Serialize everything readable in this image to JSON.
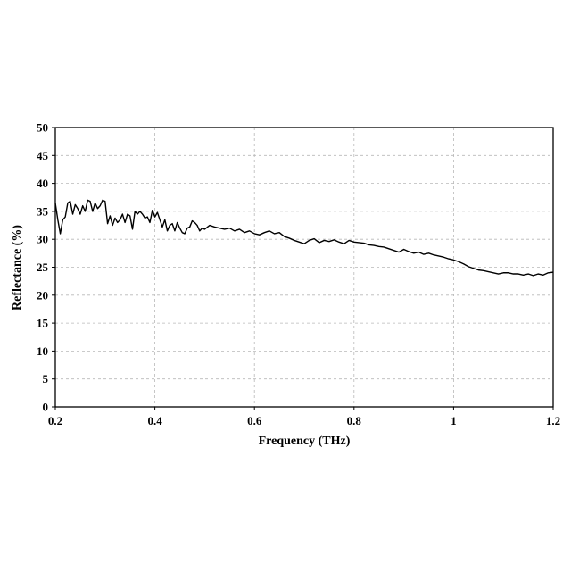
{
  "chart_data": {
    "type": "line",
    "title": "",
    "xlabel": "Frequency (THz)",
    "ylabel": "Reflectance (%)",
    "xlim": [
      0.2,
      1.2
    ],
    "ylim": [
      0,
      50
    ],
    "x_ticks": [
      "0.2",
      "0.4",
      "0.6",
      "0.8",
      "1",
      "1.2"
    ],
    "y_ticks": [
      "0",
      "5",
      "10",
      "15",
      "20",
      "25",
      "30",
      "35",
      "40",
      "45",
      "50"
    ],
    "grid": true,
    "legend": "none",
    "series": [
      {
        "color": "#000000",
        "x": [
          0.2,
          0.205,
          0.21,
          0.215,
          0.22,
          0.225,
          0.23,
          0.235,
          0.24,
          0.245,
          0.25,
          0.255,
          0.26,
          0.265,
          0.27,
          0.275,
          0.28,
          0.285,
          0.29,
          0.295,
          0.3,
          0.305,
          0.31,
          0.315,
          0.32,
          0.325,
          0.33,
          0.335,
          0.34,
          0.345,
          0.35,
          0.355,
          0.36,
          0.365,
          0.37,
          0.375,
          0.38,
          0.385,
          0.39,
          0.395,
          0.4,
          0.405,
          0.41,
          0.415,
          0.42,
          0.425,
          0.43,
          0.435,
          0.44,
          0.445,
          0.45,
          0.455,
          0.46,
          0.465,
          0.47,
          0.475,
          0.48,
          0.485,
          0.49,
          0.495,
          0.5,
          0.51,
          0.52,
          0.53,
          0.54,
          0.55,
          0.56,
          0.57,
          0.58,
          0.59,
          0.6,
          0.61,
          0.62,
          0.63,
          0.64,
          0.65,
          0.66,
          0.67,
          0.68,
          0.69,
          0.7,
          0.71,
          0.72,
          0.73,
          0.74,
          0.75,
          0.76,
          0.77,
          0.78,
          0.79,
          0.8,
          0.81,
          0.82,
          0.83,
          0.84,
          0.85,
          0.86,
          0.87,
          0.88,
          0.89,
          0.9,
          0.91,
          0.92,
          0.93,
          0.94,
          0.95,
          0.96,
          0.97,
          0.98,
          0.99,
          1.0,
          1.01,
          1.02,
          1.03,
          1.04,
          1.05,
          1.06,
          1.07,
          1.08,
          1.09,
          1.1,
          1.11,
          1.12,
          1.13,
          1.14,
          1.15,
          1.16,
          1.17,
          1.18,
          1.19,
          1.2
        ],
        "y": [
          36.5,
          33.5,
          31.0,
          33.5,
          34.0,
          36.5,
          36.8,
          34.5,
          36.2,
          35.5,
          34.5,
          36.0,
          35.0,
          37.0,
          36.8,
          35.0,
          36.5,
          35.5,
          36.0,
          37.0,
          36.8,
          32.8,
          34.2,
          32.5,
          33.8,
          33.0,
          33.5,
          34.5,
          33.0,
          34.5,
          34.2,
          31.8,
          35.0,
          34.5,
          35.0,
          34.5,
          33.8,
          34.0,
          33.0,
          35.2,
          34.0,
          34.8,
          33.5,
          32.2,
          33.5,
          31.5,
          32.5,
          32.8,
          31.5,
          33.0,
          32.0,
          31.2,
          31.0,
          32.0,
          32.2,
          33.3,
          33.0,
          32.5,
          31.5,
          32.0,
          31.8,
          32.5,
          32.2,
          32.0,
          31.8,
          32.0,
          31.5,
          31.8,
          31.2,
          31.5,
          31.0,
          30.8,
          31.2,
          31.5,
          31.0,
          31.2,
          30.5,
          30.2,
          29.8,
          29.5,
          29.2,
          29.8,
          30.1,
          29.4,
          29.8,
          29.6,
          29.9,
          29.5,
          29.2,
          29.8,
          29.5,
          29.4,
          29.3,
          29.0,
          28.9,
          28.7,
          28.6,
          28.3,
          28.0,
          27.7,
          28.2,
          27.8,
          27.5,
          27.7,
          27.3,
          27.5,
          27.2,
          27.0,
          26.8,
          26.5,
          26.3,
          26.0,
          25.6,
          25.1,
          24.8,
          24.5,
          24.4,
          24.2,
          24.0,
          23.8,
          24.0,
          24.0,
          23.8,
          23.8,
          23.6,
          23.8,
          23.5,
          23.8,
          23.6,
          24.0,
          24.1
        ]
      }
    ]
  }
}
